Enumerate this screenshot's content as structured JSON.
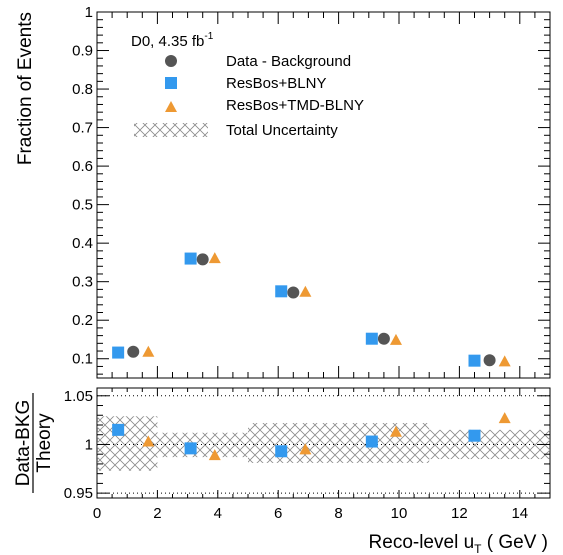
{
  "chart_data": [
    {
      "type": "scatter",
      "panel": "main",
      "ylabel": "Fraction of Events",
      "ylim": [
        0.05,
        1.0
      ],
      "yticks": [
        "0.1",
        "0.2",
        "0.3",
        "0.4",
        "0.5",
        "0.6",
        "0.7",
        "0.8",
        "0.9",
        "1"
      ],
      "annotation": {
        "text": "D0, 4.35 fb",
        "sup": "-1"
      },
      "legend_position": "top-left",
      "series": [
        {
          "name": "Data - Background",
          "marker": "circle",
          "color": "#555555",
          "x": [
            1.2,
            3.5,
            6.5,
            9.5,
            13.0
          ],
          "y": [
            0.118,
            0.358,
            0.272,
            0.152,
            0.096
          ]
        },
        {
          "name": "ResBos+BLNY",
          "marker": "square",
          "color": "#3399ee",
          "x": [
            0.7,
            3.1,
            6.1,
            9.1,
            12.5
          ],
          "y": [
            0.116,
            0.36,
            0.275,
            0.152,
            0.095
          ]
        },
        {
          "name": "ResBos+TMD-BLNY",
          "marker": "triangle",
          "color": "#ee9933",
          "x": [
            1.7,
            3.9,
            6.9,
            9.9,
            13.5
          ],
          "y": [
            0.118,
            0.361,
            0.274,
            0.149,
            0.093
          ]
        }
      ],
      "uncertainty_label": "Total Uncertainty"
    },
    {
      "type": "scatter",
      "panel": "ratio",
      "ylabel_num": "Data-BKG",
      "ylabel_den": "Theory",
      "xlabel_pre": "Reco-level u",
      "xlabel_sub": "T",
      "xlabel_post": " ( GeV )",
      "xlim": [
        0,
        15
      ],
      "ylim": [
        0.945,
        1.058
      ],
      "xticks": [
        "0",
        "2",
        "4",
        "6",
        "8",
        "10",
        "12",
        "14"
      ],
      "yticks": [
        "0.95",
        "1",
        "1.05"
      ],
      "dotted_lines": [
        0.95,
        1.0,
        1.05
      ],
      "uncertainty_band": [
        {
          "x0": 0.0,
          "x1": 2.0,
          "lo": 0.973,
          "hi": 1.029
        },
        {
          "x0": 2.0,
          "x1": 5.0,
          "lo": 0.987,
          "hi": 1.012
        },
        {
          "x0": 5.0,
          "x1": 11.0,
          "lo": 0.981,
          "hi": 1.022
        },
        {
          "x0": 11.0,
          "x1": 15.0,
          "lo": 0.985,
          "hi": 1.015
        }
      ],
      "series": [
        {
          "name": "ResBos+BLNY",
          "marker": "square",
          "color": "#3399ee",
          "x": [
            0.7,
            3.1,
            6.1,
            9.1,
            12.5
          ],
          "y": [
            1.015,
            0.996,
            0.993,
            1.003,
            1.009
          ]
        },
        {
          "name": "ResBos+TMD-BLNY",
          "marker": "triangle",
          "color": "#ee9933",
          "x": [
            1.7,
            3.9,
            6.9,
            9.9,
            13.5
          ],
          "y": [
            1.003,
            0.989,
            0.995,
            1.013,
            1.027
          ]
        }
      ]
    }
  ]
}
